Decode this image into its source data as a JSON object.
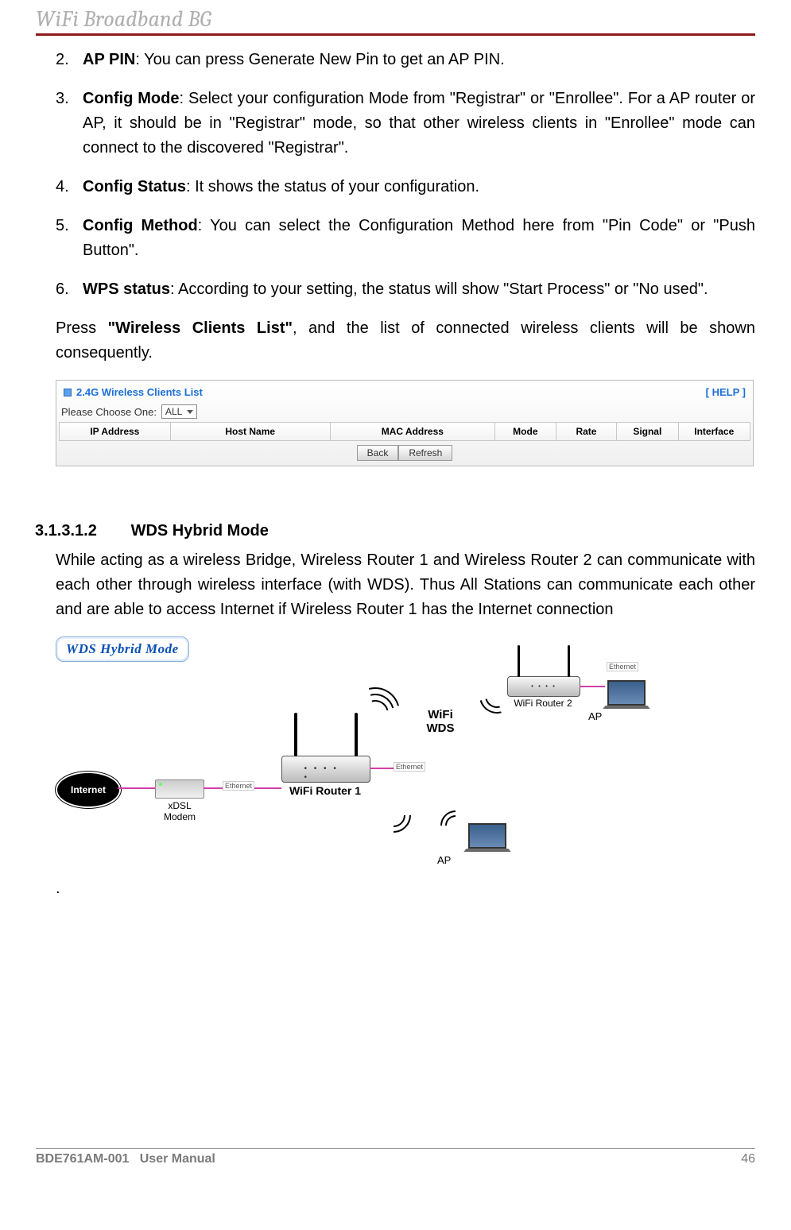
{
  "header": {
    "title": "WiFi Broadband BG"
  },
  "items": [
    {
      "num": "2.",
      "term": "AP PIN",
      "text": ": You can press Generate New Pin to get an AP PIN."
    },
    {
      "num": "3.",
      "term": "Config Mode",
      "text": ": Select your configuration Mode from \"Registrar\" or \"Enrollee\". For a AP router or AP, it should be in \"Registrar\" mode, so that other wireless clients in \"Enrollee\" mode can connect to the discovered \"Registrar\"."
    },
    {
      "num": "4.",
      "term": "Config Status",
      "text": ": It shows the status of your configuration."
    },
    {
      "num": "5.",
      "term": "Config Method",
      "text": ": You can select the Configuration Method here from \"Pin Code\" or \"Push Button\"."
    },
    {
      "num": "6.",
      "term": "WPS status",
      "text": ": According to your setting, the status will show \"Start Process\" or \"No used\"."
    }
  ],
  "press_para": {
    "prefix": "Press ",
    "bold": "\"Wireless Clients List\"",
    "suffix": ", and the list of connected wireless clients will be shown consequently."
  },
  "screenshot": {
    "title": "2.4G Wireless Clients List",
    "help": "[ HELP ]",
    "choose_label": "Please Choose One:",
    "choose_value": "ALL",
    "columns": [
      "IP Address",
      "Host Name",
      "MAC Address",
      "Mode",
      "Rate",
      "Signal",
      "Interface"
    ],
    "col_widths": [
      "140px",
      "210px",
      "215px",
      "72px",
      "72px",
      "72px",
      "85px"
    ],
    "buttons": [
      "Back",
      "Refresh"
    ],
    "title_color": "#1c6fd6",
    "border_color": "#c8c8c8"
  },
  "section": {
    "num": "3.1.3.1.2",
    "title": "WDS Hybrid Mode"
  },
  "wds_para": "While acting as a wireless Bridge, Wireless Router 1 and Wireless Router 2 can communicate with each other through wireless interface (with WDS). Thus All Stations can communicate each other and are able to access Internet if Wireless Router 1 has the Internet connection",
  "diagram": {
    "badge": "WDS Hybrid Mode",
    "internet": "Internet",
    "modem_label": "xDSL Modem",
    "router1_label": "WiFi Router 1",
    "router2_label": "WiFi Router 2",
    "wifi_wds": "WiFi\nWDS",
    "ap1": "AP",
    "ap2": "AP",
    "ethernet": "Ethernet",
    "line_color": "#d23ea6"
  },
  "footer": {
    "left_code": "BDE761AM-001",
    "left_text": "User Manual",
    "page": "46"
  }
}
